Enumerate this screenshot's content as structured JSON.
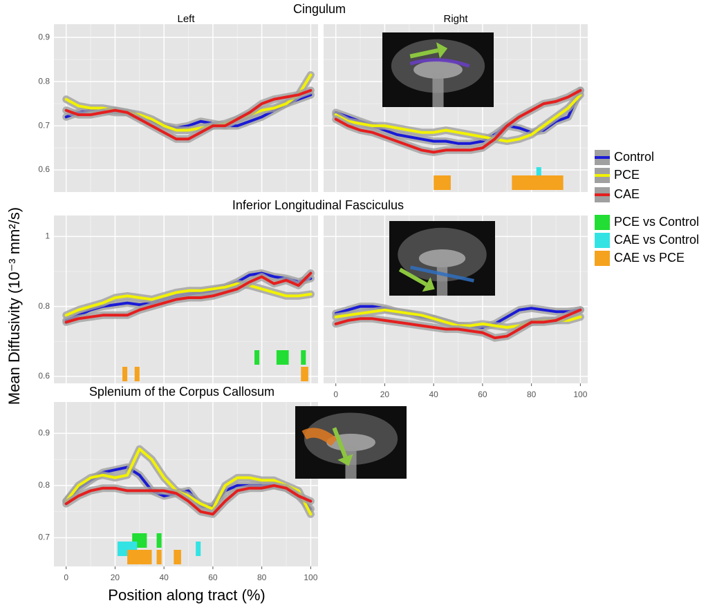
{
  "chart_data": {
    "type": "line",
    "ylabel": "Mean Diffusivity (10⁻³ mm²/s)",
    "xlabel": "Position along tract (%)",
    "x": [
      0,
      5,
      10,
      15,
      20,
      25,
      30,
      35,
      40,
      45,
      50,
      55,
      60,
      65,
      70,
      75,
      80,
      85,
      90,
      95,
      100
    ],
    "series": [
      {
        "name": "Control",
        "color": "#1a1ad6"
      },
      {
        "name": "PCE",
        "color": "#f2f200"
      },
      {
        "name": "CAE",
        "color": "#e51e1e"
      }
    ],
    "comparisons": [
      {
        "name": "PCE vs Control",
        "color": "#22dd33"
      },
      {
        "name": "CAE vs Control",
        "color": "#33e3e3"
      },
      {
        "name": "CAE vs PCE",
        "color": "#f5a21e"
      }
    ],
    "rows": [
      {
        "title": "Cingulum",
        "panels": [
          {
            "label": "Left",
            "xlim": [
              -5,
              103
            ],
            "ylim": [
              0.55,
              0.93
            ],
            "xticks": [
              0,
              20,
              40,
              60,
              80,
              100
            ],
            "xtick_labels": false,
            "yticks": [
              0.6,
              0.7,
              0.8,
              0.9
            ],
            "ytick_labels": true,
            "values": [
              [
                0.72,
                0.73,
                0.735,
                0.735,
                0.73,
                0.73,
                0.72,
                0.71,
                0.7,
                0.695,
                0.7,
                0.71,
                0.705,
                0.7,
                0.7,
                0.71,
                0.72,
                0.735,
                0.75,
                0.76,
                0.77
              ],
              [
                0.76,
                0.745,
                0.74,
                0.74,
                0.735,
                0.73,
                0.725,
                0.715,
                0.7,
                0.69,
                0.69,
                0.695,
                0.7,
                0.705,
                0.715,
                0.725,
                0.735,
                0.74,
                0.75,
                0.77,
                0.815
              ],
              [
                0.735,
                0.725,
                0.725,
                0.73,
                0.735,
                0.73,
                0.715,
                0.7,
                0.685,
                0.67,
                0.67,
                0.685,
                0.7,
                0.7,
                0.715,
                0.73,
                0.75,
                0.76,
                0.765,
                0.77,
                0.78
              ]
            ],
            "significance": [
              [],
              [],
              []
            ]
          },
          {
            "label": "Right",
            "xlim": [
              -5,
              103
            ],
            "ylim": [
              0.55,
              0.93
            ],
            "xticks": [
              0,
              20,
              40,
              60,
              80,
              100
            ],
            "xtick_labels": false,
            "yticks": [
              0.6,
              0.7,
              0.8,
              0.9
            ],
            "ytick_labels": false,
            "values": [
              [
                0.73,
                0.72,
                0.71,
                0.7,
                0.69,
                0.68,
                0.675,
                0.67,
                0.665,
                0.665,
                0.66,
                0.66,
                0.665,
                0.68,
                0.7,
                0.695,
                0.685,
                0.69,
                0.71,
                0.72,
                0.78
              ],
              [
                0.725,
                0.71,
                0.705,
                0.7,
                0.7,
                0.695,
                0.69,
                0.685,
                0.685,
                0.69,
                0.685,
                0.68,
                0.675,
                0.67,
                0.665,
                0.67,
                0.68,
                0.7,
                0.72,
                0.74,
                0.77
              ],
              [
                0.715,
                0.7,
                0.69,
                0.685,
                0.675,
                0.665,
                0.655,
                0.645,
                0.64,
                0.645,
                0.645,
                0.645,
                0.65,
                0.67,
                0.7,
                0.72,
                0.735,
                0.75,
                0.755,
                0.765,
                0.78
              ]
            ],
            "significance": [
              [],
              [
                [
                  82,
                  84
                ]
              ],
              [
                [
                  40,
                  47
                ],
                [
                  72,
                  93
                ]
              ]
            ]
          }
        ]
      },
      {
        "title": "Inferior Longitudinal Fasciculus",
        "panels": [
          {
            "xlim": [
              -5,
              103
            ],
            "ylim": [
              0.58,
              1.06
            ],
            "xticks": [
              0,
              20,
              40,
              60,
              80,
              100
            ],
            "xtick_labels": false,
            "yticks": [
              0.6,
              0.8,
              1.0
            ],
            "ytick_labels": true,
            "values": [
              [
                0.76,
                0.775,
                0.79,
                0.8,
                0.805,
                0.81,
                0.805,
                0.81,
                0.82,
                0.83,
                0.835,
                0.84,
                0.845,
                0.855,
                0.87,
                0.89,
                0.895,
                0.885,
                0.88,
                0.87,
                0.88
              ],
              [
                0.775,
                0.79,
                0.8,
                0.81,
                0.825,
                0.83,
                0.825,
                0.82,
                0.83,
                0.84,
                0.845,
                0.845,
                0.85,
                0.855,
                0.865,
                0.86,
                0.85,
                0.84,
                0.83,
                0.83,
                0.835
              ],
              [
                0.755,
                0.765,
                0.77,
                0.775,
                0.775,
                0.775,
                0.79,
                0.8,
                0.81,
                0.82,
                0.825,
                0.825,
                0.83,
                0.84,
                0.85,
                0.87,
                0.885,
                0.865,
                0.875,
                0.86,
                0.895
              ]
            ],
            "significance": [
              [
                [
                  77,
                  79
                ],
                [
                  86,
                  91
                ],
                [
                  96,
                  98
                ]
              ],
              [],
              [
                [
                  23,
                  25
                ],
                [
                  28,
                  30
                ],
                [
                  96,
                  99
                ]
              ]
            ]
          },
          {
            "xlim": [
              -5,
              103
            ],
            "ylim": [
              0.58,
              1.06
            ],
            "xticks": [
              0,
              20,
              40,
              60,
              80,
              100
            ],
            "xtick_labels": true,
            "yticks": [
              0.6,
              0.8,
              1.0
            ],
            "ytick_labels": false,
            "values": [
              [
                0.78,
                0.79,
                0.8,
                0.8,
                0.795,
                0.785,
                0.78,
                0.77,
                0.765,
                0.755,
                0.745,
                0.74,
                0.74,
                0.75,
                0.77,
                0.79,
                0.795,
                0.79,
                0.785,
                0.785,
                0.79
              ],
              [
                0.77,
                0.775,
                0.78,
                0.785,
                0.79,
                0.785,
                0.78,
                0.775,
                0.765,
                0.755,
                0.745,
                0.745,
                0.75,
                0.745,
                0.74,
                0.745,
                0.755,
                0.76,
                0.76,
                0.76,
                0.77
              ],
              [
                0.75,
                0.76,
                0.765,
                0.765,
                0.76,
                0.755,
                0.75,
                0.745,
                0.74,
                0.735,
                0.735,
                0.73,
                0.725,
                0.71,
                0.715,
                0.735,
                0.755,
                0.755,
                0.76,
                0.775,
                0.79
              ]
            ],
            "significance": [
              [],
              [],
              []
            ]
          }
        ]
      },
      {
        "title": "Splenium of the Corpus Callosum",
        "panels": [
          {
            "xlim": [
              -5,
              103
            ],
            "ylim": [
              0.645,
              0.96
            ],
            "xticks": [
              0,
              20,
              40,
              60,
              80,
              100
            ],
            "xtick_labels": true,
            "yticks": [
              0.7,
              0.8,
              0.9
            ],
            "ytick_labels": true,
            "values": [
              [
                0.77,
                0.795,
                0.81,
                0.825,
                0.83,
                0.835,
                0.82,
                0.79,
                0.78,
                0.785,
                0.79,
                0.76,
                0.76,
                0.79,
                0.8,
                0.8,
                0.8,
                0.8,
                0.795,
                0.78,
                0.755
              ],
              [
                0.77,
                0.8,
                0.815,
                0.82,
                0.815,
                0.82,
                0.87,
                0.85,
                0.815,
                0.79,
                0.78,
                0.765,
                0.755,
                0.8,
                0.815,
                0.815,
                0.81,
                0.81,
                0.8,
                0.79,
                0.745
              ],
              [
                0.765,
                0.78,
                0.79,
                0.795,
                0.795,
                0.79,
                0.79,
                0.79,
                0.79,
                0.785,
                0.77,
                0.75,
                0.745,
                0.77,
                0.79,
                0.795,
                0.795,
                0.8,
                0.795,
                0.78,
                0.77
              ]
            ],
            "significance": [
              [
                [
                  27,
                  33
                ],
                [
                  37,
                  39
                ]
              ],
              [
                [
                  21,
                  29
                ],
                [
                  53,
                  55
                ]
              ],
              [
                [
                  25,
                  35
                ],
                [
                  37,
                  39
                ],
                [
                  44,
                  47
                ]
              ]
            ]
          }
        ]
      }
    ]
  }
}
